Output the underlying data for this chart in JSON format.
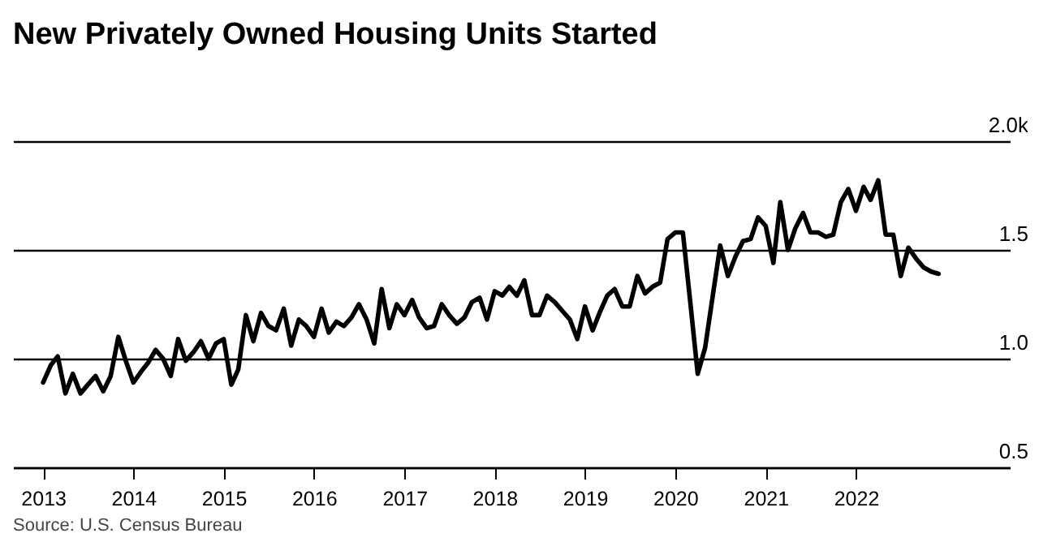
{
  "chart_data": {
    "type": "line",
    "title": "New Privately Owned Housing Units Started",
    "annotations": [
      "Source: U.S. Census Bureau"
    ],
    "x": [
      "2013-01",
      "2013-02",
      "2013-03",
      "2013-04",
      "2013-05",
      "2013-06",
      "2013-07",
      "2013-08",
      "2013-09",
      "2013-10",
      "2013-11",
      "2013-12",
      "2014-01",
      "2014-02",
      "2014-03",
      "2014-04",
      "2014-05",
      "2014-06",
      "2014-07",
      "2014-08",
      "2014-09",
      "2014-10",
      "2014-11",
      "2014-12",
      "2015-01",
      "2015-02",
      "2015-03",
      "2015-04",
      "2015-05",
      "2015-06",
      "2015-07",
      "2015-08",
      "2015-09",
      "2015-10",
      "2015-11",
      "2015-12",
      "2016-01",
      "2016-02",
      "2016-03",
      "2016-04",
      "2016-05",
      "2016-06",
      "2016-07",
      "2016-08",
      "2016-09",
      "2016-10",
      "2016-11",
      "2016-12",
      "2017-01",
      "2017-02",
      "2017-03",
      "2017-04",
      "2017-05",
      "2017-06",
      "2017-07",
      "2017-08",
      "2017-09",
      "2017-10",
      "2017-11",
      "2017-12",
      "2018-01",
      "2018-02",
      "2018-03",
      "2018-04",
      "2018-05",
      "2018-06",
      "2018-07",
      "2018-08",
      "2018-09",
      "2018-10",
      "2018-11",
      "2018-12",
      "2019-01",
      "2019-02",
      "2019-03",
      "2019-04",
      "2019-05",
      "2019-06",
      "2019-07",
      "2019-08",
      "2019-09",
      "2019-10",
      "2019-11",
      "2019-12",
      "2020-01",
      "2020-02",
      "2020-03",
      "2020-04",
      "2020-05",
      "2020-06",
      "2020-07",
      "2020-08",
      "2020-09",
      "2020-10",
      "2020-11",
      "2020-12",
      "2021-01",
      "2021-02",
      "2021-03",
      "2021-04",
      "2021-05",
      "2021-06",
      "2021-07",
      "2021-08",
      "2021-09",
      "2021-10",
      "2021-11",
      "2021-12",
      "2022-01",
      "2022-02",
      "2022-03",
      "2022-04",
      "2022-05",
      "2022-06",
      "2022-07",
      "2022-08",
      "2022-09",
      "2022-10",
      "2022-11",
      "2022-12"
    ],
    "series": [
      {
        "color": "#000000",
        "values": [
          0.89,
          0.97,
          1.01,
          0.84,
          0.93,
          0.84,
          0.88,
          0.92,
          0.85,
          0.92,
          1.1,
          0.99,
          0.89,
          0.94,
          0.98,
          1.04,
          1.0,
          0.92,
          1.09,
          0.99,
          1.03,
          1.08,
          1.0,
          1.07,
          1.09,
          0.88,
          0.95,
          1.2,
          1.08,
          1.21,
          1.15,
          1.13,
          1.23,
          1.06,
          1.18,
          1.15,
          1.1,
          1.23,
          1.12,
          1.17,
          1.15,
          1.19,
          1.25,
          1.18,
          1.07,
          1.32,
          1.14,
          1.25,
          1.2,
          1.27,
          1.19,
          1.14,
          1.15,
          1.25,
          1.2,
          1.16,
          1.19,
          1.26,
          1.28,
          1.18,
          1.31,
          1.29,
          1.33,
          1.29,
          1.36,
          1.2,
          1.2,
          1.29,
          1.26,
          1.22,
          1.18,
          1.09,
          1.24,
          1.13,
          1.21,
          1.29,
          1.32,
          1.24,
          1.24,
          1.38,
          1.3,
          1.33,
          1.35,
          1.55,
          1.58,
          1.58,
          1.27,
          0.93,
          1.05,
          1.29,
          1.52,
          1.38,
          1.47,
          1.54,
          1.55,
          1.65,
          1.61,
          1.44,
          1.72,
          1.5,
          1.6,
          1.67,
          1.58,
          1.58,
          1.56,
          1.57,
          1.72,
          1.78,
          1.68,
          1.79,
          1.73,
          1.82,
          1.57,
          1.57,
          1.38,
          1.51,
          1.46,
          1.42,
          1.4,
          1.39
        ]
      }
    ],
    "xlim": [
      "2012-09",
      "2023-09-15"
    ],
    "xticks": [
      "2013",
      "2014",
      "2015",
      "2016",
      "2017",
      "2018",
      "2019",
      "2020",
      "2021",
      "2022"
    ],
    "ylim": [
      0.5,
      2.0
    ],
    "yticks": [
      {
        "value": 0.5,
        "label": "0.5"
      },
      {
        "value": 1.0,
        "label": "1.0"
      },
      {
        "value": 1.5,
        "label": "1.5"
      },
      {
        "value": 2.0,
        "label": "2.0k"
      }
    ],
    "grid": "y",
    "legend": false,
    "marker": "none",
    "line_style": "solid"
  }
}
